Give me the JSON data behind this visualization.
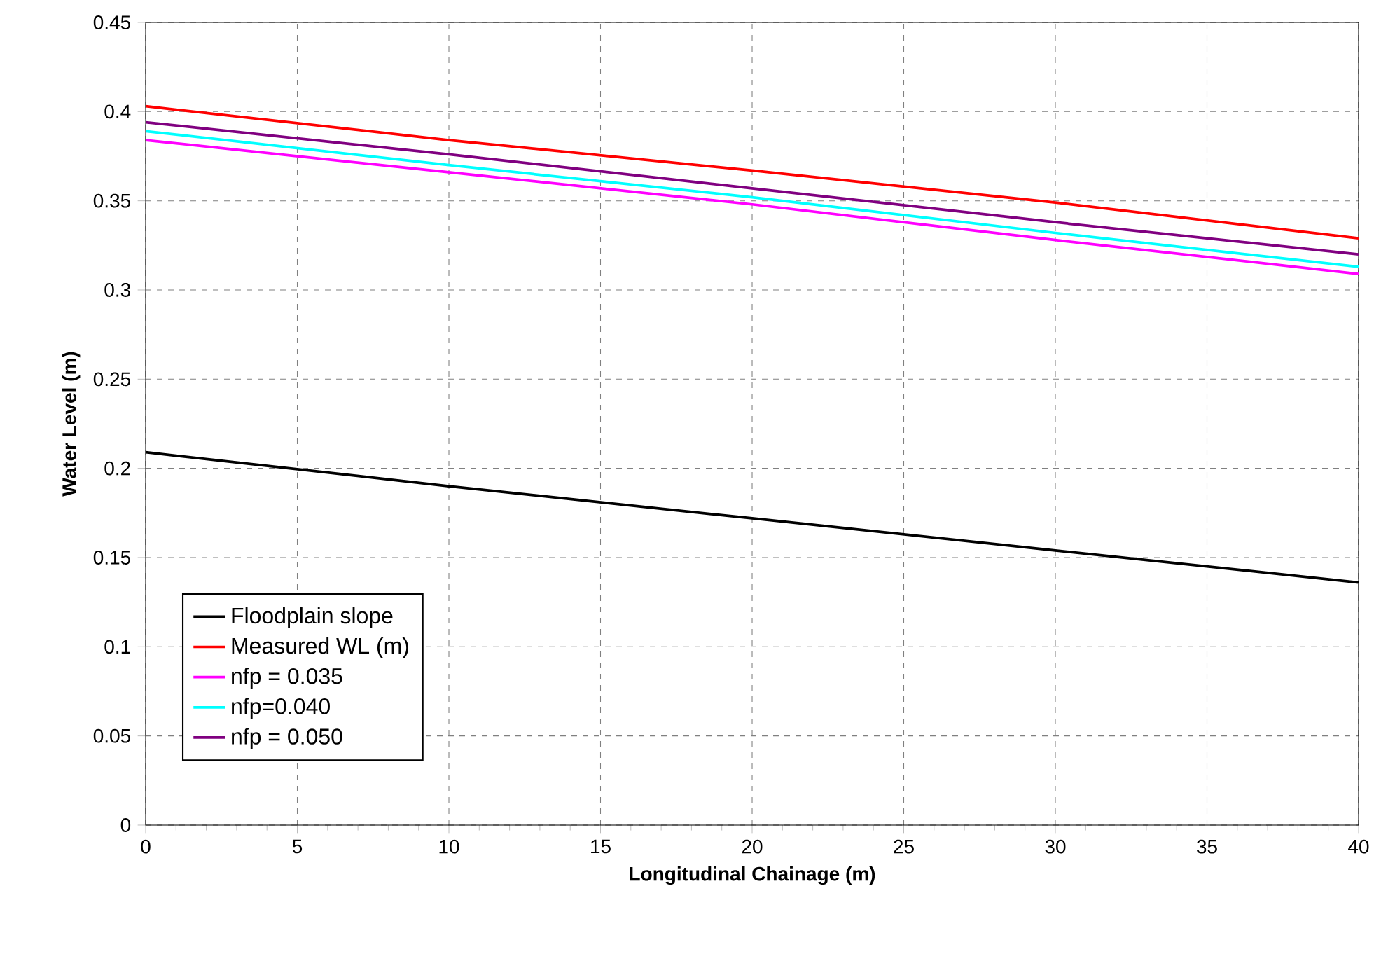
{
  "chart_data": {
    "type": "line",
    "xlabel": "Longitudinal Chainage (m)",
    "ylabel": "Water Level (m)",
    "xlim": [
      0,
      40
    ],
    "ylim": [
      0,
      0.45
    ],
    "xticks": [
      0,
      5,
      10,
      15,
      20,
      25,
      30,
      35,
      40
    ],
    "yticks": [
      0,
      0.05,
      0.1,
      0.15,
      0.2,
      0.25,
      0.3,
      0.35,
      0.4,
      0.45
    ],
    "x": [
      0,
      10,
      20,
      30,
      40
    ],
    "series": [
      {
        "name": "Floodplain slope",
        "color": "#000000",
        "values": [
          0.209,
          0.19,
          0.172,
          0.154,
          0.136
        ]
      },
      {
        "name": "Measured WL (m)",
        "color": "#ff0000",
        "values": [
          0.403,
          0.384,
          0.367,
          0.349,
          0.329
        ]
      },
      {
        "name": "nfp = 0.035",
        "color": "#ff00ff",
        "values": [
          0.384,
          0.366,
          0.348,
          0.328,
          0.309
        ]
      },
      {
        "name": "nfp=0.040",
        "color": "#00ffff",
        "values": [
          0.389,
          0.37,
          0.352,
          0.332,
          0.313
        ]
      },
      {
        "name": "nfp = 0.050",
        "color": "#800080",
        "values": [
          0.394,
          0.376,
          0.357,
          0.338,
          0.32
        ]
      }
    ],
    "grid": true,
    "legend": "bottom left",
    "marker": "none",
    "line_style": "solid"
  }
}
